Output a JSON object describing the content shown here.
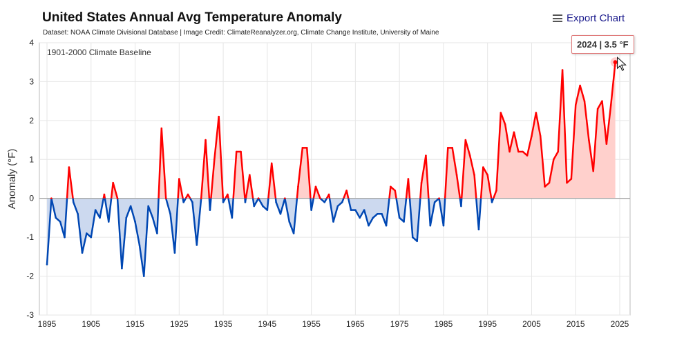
{
  "header": {
    "title": "United States Annual Avg Temperature Anomaly",
    "subtitle": "Dataset: NOAA Climate Divisional Database | Image Credit: ClimateReanalyzer.org, Climate Change Institute, University of Maine",
    "export_label": "Export Chart",
    "export_icon": "hamburger-menu-icon"
  },
  "tooltip": {
    "text": "2024 | 3.5 °F"
  },
  "chart_data": {
    "type": "area",
    "title": "United States Annual Avg Temperature Anomaly",
    "ylabel": "Anomaly (°F)",
    "xlabel": "",
    "annotation": "1901-2000 Climate Baseline",
    "xlim": [
      1893,
      2033
    ],
    "ylim": [
      -3,
      4
    ],
    "yticks": [
      -3,
      -2,
      -1,
      0,
      1,
      2,
      3,
      4
    ],
    "xticks": [
      1895,
      1905,
      1915,
      1925,
      1935,
      1945,
      1955,
      1965,
      1975,
      1985,
      1995,
      2005,
      2015,
      2025
    ],
    "grid": true,
    "colors": {
      "positive_line": "#ff0000",
      "positive_fill": "#ffd0cc",
      "negative_line": "#0047b3",
      "negative_fill": "#ccd9ef",
      "zero_line": "#aaaaaa"
    },
    "x_start": 1895,
    "values": [
      -1.7,
      0.0,
      -0.5,
      -0.6,
      -1.0,
      0.8,
      -0.1,
      -0.4,
      -1.4,
      -0.9,
      -1.0,
      -0.3,
      -0.5,
      0.1,
      -0.6,
      0.4,
      0.0,
      -1.8,
      -0.5,
      -0.2,
      -0.6,
      -1.2,
      -2.0,
      -0.2,
      -0.5,
      -0.9,
      1.8,
      0.0,
      -0.4,
      -1.4,
      0.5,
      -0.1,
      0.1,
      -0.1,
      -1.2,
      0.0,
      1.5,
      -0.3,
      1.0,
      2.1,
      -0.1,
      0.1,
      -0.5,
      1.2,
      1.2,
      -0.1,
      0.6,
      -0.2,
      0.0,
      -0.2,
      -0.3,
      0.9,
      -0.1,
      -0.4,
      0.0,
      -0.6,
      -0.9,
      0.3,
      1.3,
      1.3,
      -0.3,
      0.3,
      0.0,
      -0.1,
      0.1,
      -0.6,
      -0.2,
      -0.1,
      0.2,
      -0.3,
      -0.3,
      -0.5,
      -0.3,
      -0.7,
      -0.5,
      -0.4,
      -0.4,
      -0.7,
      0.3,
      0.2,
      -0.5,
      -0.6,
      0.5,
      -1.0,
      -1.1,
      0.4,
      1.1,
      -0.7,
      -0.1,
      0.0,
      -0.7,
      1.3,
      1.3,
      0.6,
      -0.2,
      1.5,
      1.1,
      0.6,
      -0.8,
      0.8,
      0.6,
      -0.1,
      0.2,
      2.2,
      1.9,
      1.2,
      1.7,
      1.2,
      1.2,
      1.1,
      1.6,
      2.2,
      1.6,
      0.3,
      0.4,
      1.0,
      1.2,
      3.3,
      0.4,
      0.5,
      2.4,
      2.9,
      2.5,
      1.5,
      0.7,
      2.3,
      2.5,
      1.4,
      2.4,
      3.5
    ],
    "highlighted": {
      "x": 2024,
      "y": 3.5
    }
  }
}
